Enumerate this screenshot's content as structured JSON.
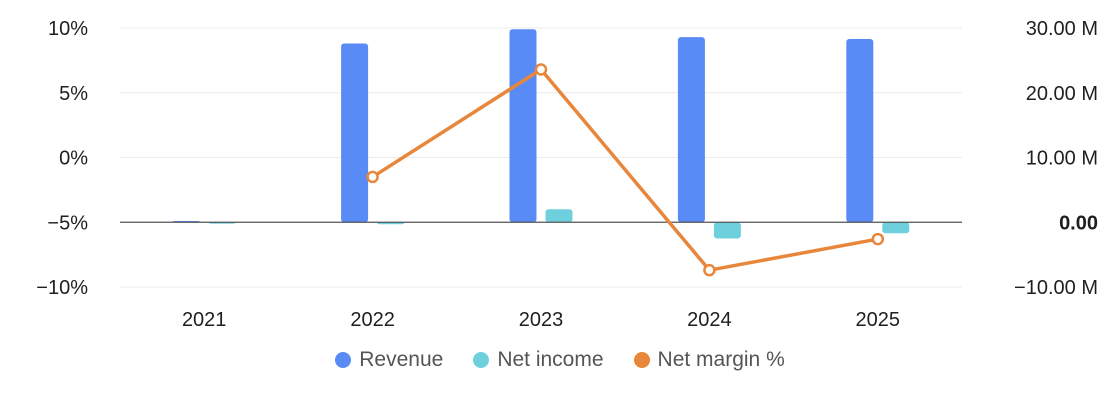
{
  "chart_data": {
    "type": "bar+line",
    "categories": [
      "2021",
      "2022",
      "2023",
      "2024",
      "2025"
    ],
    "left_axis": {
      "ticks": [
        "10%",
        "5%",
        "0%",
        "−5%",
        "−10%"
      ],
      "range": [
        -10,
        10
      ]
    },
    "right_axis": {
      "ticks": [
        "30.00 M",
        "20.00 M",
        "10.00 M",
        "0.00",
        "−10.00 M"
      ],
      "range": [
        -10000000,
        30000000
      ]
    },
    "series": [
      {
        "name": "Revenue",
        "type": "bar",
        "axis": "right",
        "color": "#588bf5",
        "values": [
          200000,
          27600000,
          29800000,
          28600000,
          28300000
        ]
      },
      {
        "name": "Net income",
        "type": "bar",
        "axis": "right",
        "color": "#6fd0dd",
        "values": [
          -200000,
          -300000,
          2000000,
          -2500000,
          -1700000
        ]
      },
      {
        "name": "Net margin %",
        "type": "line",
        "axis": "left",
        "color": "#e8873b",
        "values": [
          null,
          -1.5,
          6.8,
          -8.7,
          -6.3
        ]
      }
    ],
    "grid": true,
    "legend_position": "bottom"
  }
}
